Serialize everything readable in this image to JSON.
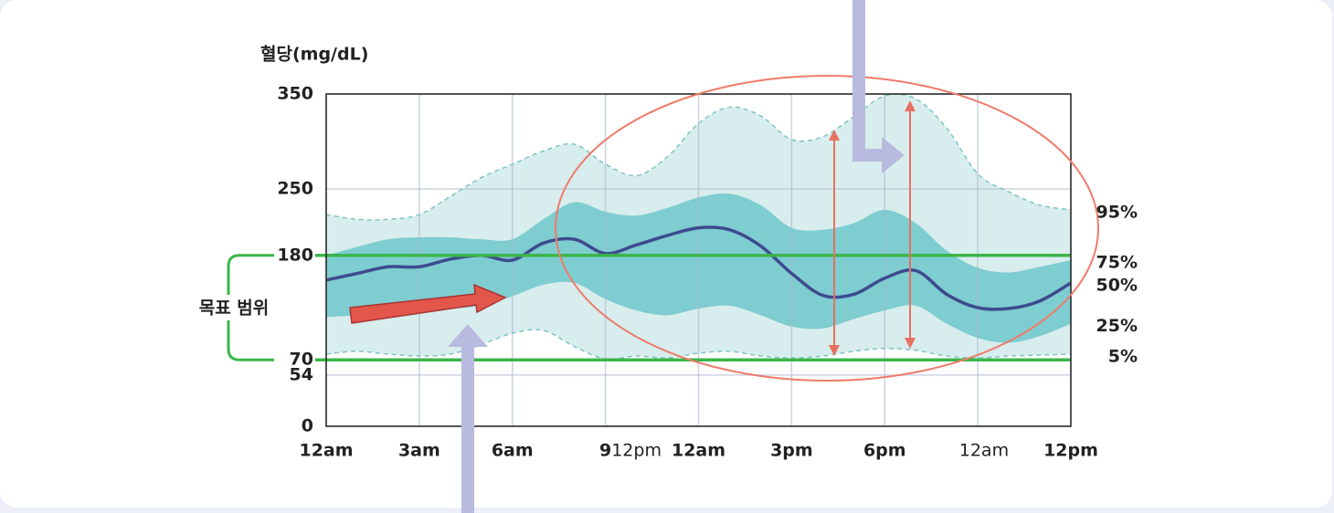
{
  "chart_data": {
    "type": "percentile-band",
    "y_label": "혈당(mg/dL)",
    "x": [
      0,
      1,
      2,
      3,
      4,
      5,
      6,
      7,
      8,
      9,
      10,
      11,
      12,
      13,
      14,
      15,
      16,
      17,
      18,
      19,
      20,
      21,
      22,
      23,
      24
    ],
    "xlim": [
      0,
      24
    ],
    "xticks": [
      {
        "value": 0,
        "label": "12am"
      },
      {
        "value": 3,
        "label": "3am"
      },
      {
        "value": 6,
        "label": "6am"
      },
      {
        "value": 9,
        "label": "9"
      },
      {
        "value": 12,
        "label": "12am"
      },
      {
        "value": 15,
        "label": "3pm"
      },
      {
        "value": 18,
        "label": "6pm"
      },
      {
        "value": 21,
        "label": null
      },
      {
        "value": 24,
        "label": "12pm"
      }
    ],
    "ylim": [
      0,
      350
    ],
    "yticks": [
      0,
      54,
      70,
      180,
      250,
      350
    ],
    "grid": true,
    "target_range": [
      70,
      180
    ],
    "target_label": "목표 범위",
    "target_color": "#3cb54a",
    "annotations": [
      {
        "text": "12pm",
        "x": 10
      },
      {
        "text": "12am",
        "x": 21.2
      }
    ],
    "series": [
      {
        "name": "95%",
        "style": "dashed",
        "color": "#7fc4c4",
        "values": [
          223,
          218,
          218,
          223,
          242,
          262,
          276,
          290,
          297,
          276,
          264,
          284,
          319,
          336,
          327,
          302,
          305,
          326,
          348,
          345,
          314,
          266,
          247,
          233,
          228
        ]
      },
      {
        "name": "75%",
        "style": "band",
        "color": "#74c9cc",
        "values": [
          180,
          189,
          197,
          199,
          199,
          197,
          197,
          218,
          236,
          226,
          222,
          230,
          241,
          245,
          233,
          209,
          207,
          214,
          228,
          214,
          185,
          167,
          162,
          168,
          175
        ]
      },
      {
        "name": "50%",
        "style": "line",
        "color": "#3d4b8e",
        "values": [
          154,
          161,
          168,
          168,
          176,
          180,
          175,
          193,
          197,
          182,
          191,
          201,
          209,
          207,
          190,
          161,
          138,
          139,
          156,
          164,
          139,
          125,
          124,
          132,
          151
        ]
      },
      {
        "name": "25%",
        "style": "band",
        "color": "#74c9cc",
        "values": [
          115,
          117,
          119,
          122,
          124,
          127,
          137,
          149,
          151,
          134,
          122,
          117,
          124,
          127,
          117,
          105,
          103,
          113,
          122,
          127,
          108,
          93,
          88,
          95,
          108
        ]
      },
      {
        "name": "5%",
        "style": "dashed",
        "color": "#7fc4c4",
        "values": [
          76,
          79,
          76,
          74,
          76,
          86,
          98,
          101,
          84,
          71,
          74,
          72,
          77,
          79,
          74,
          72,
          74,
          79,
          82,
          80,
          74,
          72,
          74,
          75,
          76
        ]
      }
    ]
  }
}
